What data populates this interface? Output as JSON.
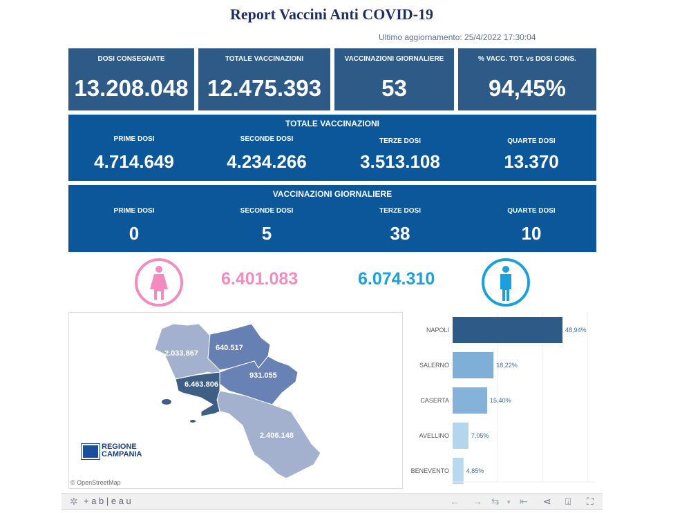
{
  "header": {
    "title": "Report Vaccini Anti COVID-19",
    "updated": "Ultimo aggiornamento: 25/4/2022 17:30:04"
  },
  "kpis": [
    {
      "label": "DOSI  CONSEGNATE",
      "value": "13.208.048"
    },
    {
      "label": "TOTALE VACCINAZIONI",
      "value": "12.475.393"
    },
    {
      "label": "VACCINAZIONI GIORNALIERE",
      "value": "53"
    },
    {
      "label": "% VACC. TOT. vs DOSI CONS.",
      "value": "94,45%"
    }
  ],
  "totale": {
    "title": "TOTALE VACCINAZIONI",
    "items": [
      {
        "label": "PRIME DOSI",
        "value": "4.714.649"
      },
      {
        "label": "SECONDE DOSI",
        "value": "4.234.266"
      },
      {
        "label": "TERZE DOSI",
        "value": "3.513.108"
      },
      {
        "label": "QUARTE DOSI",
        "value": "13.370"
      }
    ]
  },
  "giornaliere": {
    "title": "VACCINAZIONI GIORNALIERE",
    "items": [
      {
        "label": "PRIME DOSI",
        "value": "0"
      },
      {
        "label": "SECONDE DOSI",
        "value": "5"
      },
      {
        "label": "TERZE DOSI",
        "value": "38"
      },
      {
        "label": "QUARTE DOSI",
        "value": "10"
      }
    ]
  },
  "gender": {
    "female": "6.401.083",
    "male": "6.074.310",
    "female_color": "#f28cc0",
    "male_color": "#1aa0dc"
  },
  "map": {
    "labels": {
      "caserta": "2.033.867",
      "benevento": "640.517",
      "avellino": "931.055",
      "napoli": "6.463.806",
      "salerno": "2.406.148"
    },
    "logo_line1": "REGIONE",
    "logo_line2": "CAMPANIA",
    "attribution": "© OpenStreetMap"
  },
  "chart_data": {
    "type": "bar",
    "orientation": "horizontal",
    "categories": [
      "NAPOLI",
      "SALERNO",
      "CASERTA",
      "AVELLINO",
      "BENEVENTO"
    ],
    "values": [
      48.94,
      18.22,
      15.4,
      7.05,
      4.85
    ],
    "labels": [
      "48,94%",
      "18,22%",
      "15,40%",
      "7,05%",
      "4,85%"
    ],
    "colors": [
      "#2d5a86",
      "#7fafd6",
      "#85b2d8",
      "#b3d5ee",
      "#b8d8ef"
    ],
    "xlim": [
      0,
      60
    ]
  },
  "footer": {
    "brand": "+ a b | e a u"
  }
}
